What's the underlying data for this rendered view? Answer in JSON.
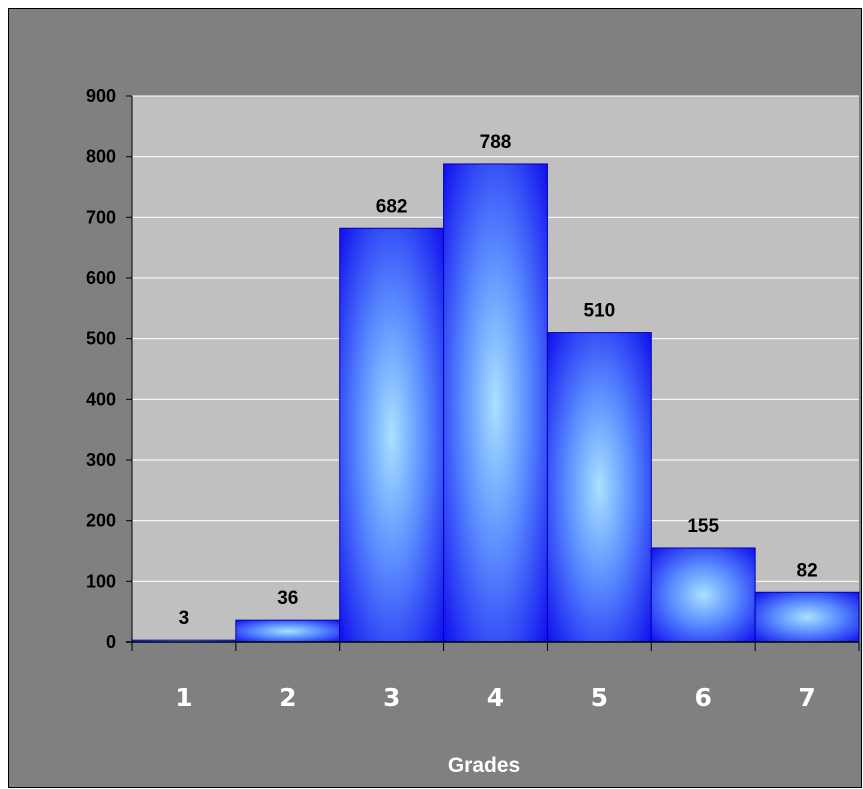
{
  "chart_data": {
    "type": "bar",
    "title": "",
    "xlabel": "Grades",
    "ylabel": "",
    "categories": [
      "1",
      "2",
      "3",
      "4",
      "5",
      "6",
      "7"
    ],
    "values": [
      3,
      36,
      682,
      788,
      510,
      155,
      82
    ],
    "data_labels": [
      "3",
      "36",
      "682",
      "788",
      "510",
      "155",
      "82"
    ],
    "ylim": [
      0,
      900
    ],
    "yticks": [
      0,
      100,
      200,
      300,
      400,
      500,
      600,
      700,
      800,
      900
    ],
    "grid": true,
    "legend": "none"
  },
  "colors": {
    "background": "#808080",
    "plot_area": "#c0c0c0",
    "gridline": "#ffffff",
    "bar_edge": "#0000b0",
    "bar_dark": "#1a1aee",
    "bar_light": "#9ad8ff"
  }
}
